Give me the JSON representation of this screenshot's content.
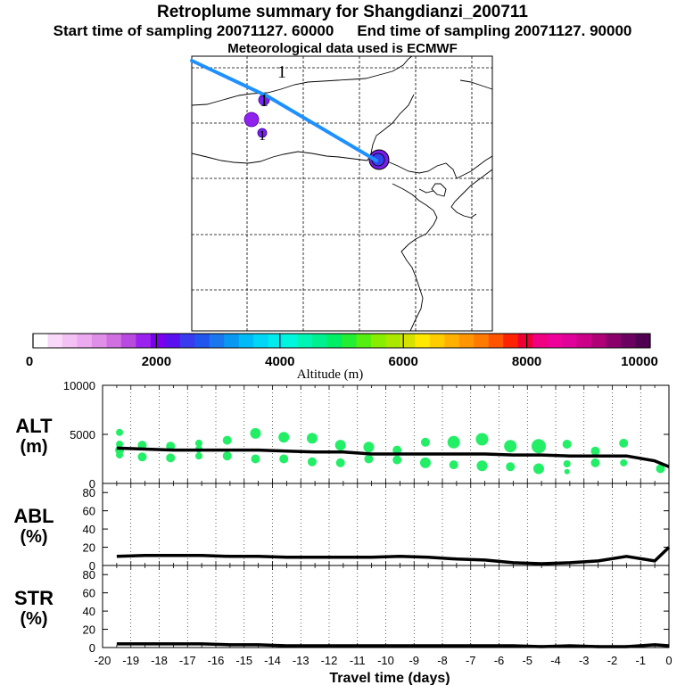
{
  "header": {
    "title": "Retroplume summary for Shangdianzi_200711",
    "start_label": "Start time of sampling 20071127. 60000",
    "end_label": "End time of sampling 20071127. 90000",
    "met_label": "Meteorological data used is ECMWF"
  },
  "map": {
    "trajectory_color": "#1e90ff",
    "land_outline_color": "#000000",
    "cluster_labels": [
      "1",
      "1",
      "1"
    ]
  },
  "colorbar": {
    "colors": [
      "#ffffff",
      "#f9d9f9",
      "#f3c1f4",
      "#ecaaf0",
      "#e08fe8",
      "#d070e0",
      "#b84ae0",
      "#9b22ee",
      "#7b00ee",
      "#5a10ee",
      "#3a3aee",
      "#2255ee",
      "#1a77f0",
      "#0a99f2",
      "#00bbf5",
      "#00d6f5",
      "#00ebee",
      "#00f7dd",
      "#00f5b5",
      "#00f08f",
      "#00ee66",
      "#22ee33",
      "#55ee11",
      "#88ee00",
      "#aae800",
      "#d5e200",
      "#ffe800",
      "#ffcc00",
      "#ffb000",
      "#ff9500",
      "#ff7a00",
      "#ff5500",
      "#ff2200",
      "#ee0033",
      "#f00080",
      "#ee0099",
      "#e0009a",
      "#cc0088",
      "#b00077",
      "#8a006a",
      "#6b0060",
      "#500050"
    ],
    "tick_labels": [
      "0",
      "2000",
      "4000",
      "6000",
      "8000",
      "10000"
    ],
    "label": "Altitude (m)"
  },
  "chart_data": [
    {
      "type": "scatter",
      "title": "ALT",
      "ylabel": "ALT (m)",
      "ylim": [
        0,
        10000
      ],
      "yticks": [
        "0",
        "5000",
        "10000"
      ],
      "xlim": [
        -20,
        0
      ],
      "line": {
        "name": "median altitude",
        "x": [
          -19.5,
          -18.5,
          -17.5,
          -16.5,
          -15.5,
          -14.5,
          -13.5,
          -12.5,
          -11.5,
          -10.5,
          -9.5,
          -8.5,
          -7.5,
          -6.5,
          -5.5,
          -4.5,
          -3.5,
          -2.5,
          -1.5,
          -0.5,
          0
        ],
        "y": [
          3600,
          3500,
          3400,
          3400,
          3400,
          3400,
          3300,
          3200,
          3200,
          3000,
          3000,
          3000,
          3000,
          3000,
          2900,
          2900,
          2800,
          2800,
          2800,
          2300,
          1700
        ]
      },
      "points": {
        "color": "#22ee66",
        "x": [
          -19.4,
          -19.4,
          -19.4,
          -19.4,
          -18.6,
          -18.6,
          -17.6,
          -17.6,
          -16.6,
          -16.6,
          -16.6,
          -15.6,
          -15.6,
          -14.6,
          -14.6,
          -13.6,
          -13.6,
          -12.6,
          -12.6,
          -11.6,
          -11.6,
          -10.6,
          -10.6,
          -9.6,
          -9.6,
          -8.6,
          -8.6,
          -7.6,
          -7.6,
          -6.6,
          -6.6,
          -5.6,
          -5.6,
          -4.6,
          -4.6,
          -3.6,
          -3.6,
          -3.6,
          -2.6,
          -2.6,
          -1.6,
          -1.6,
          -0.3
        ],
        "y": [
          5200,
          4000,
          3400,
          2900,
          3900,
          2700,
          3800,
          2600,
          4100,
          3500,
          2800,
          4400,
          2800,
          5100,
          2500,
          4700,
          2500,
          4600,
          2200,
          3900,
          2100,
          3700,
          2500,
          3400,
          2400,
          4200,
          2100,
          4200,
          1900,
          4500,
          1800,
          3800,
          1700,
          3800,
          1500,
          4000,
          2000,
          1200,
          3300,
          2100,
          4100,
          2100,
          1500
        ],
        "sizes": [
          4,
          4,
          5,
          4,
          5,
          5,
          5,
          5,
          4,
          4,
          4,
          5,
          5,
          6,
          5,
          6,
          5,
          6,
          5,
          6,
          5,
          6,
          5,
          5,
          5,
          5,
          6,
          7,
          5,
          7,
          6,
          7,
          5,
          8,
          6,
          5,
          4,
          3,
          5,
          5,
          5,
          4,
          5
        ]
      }
    },
    {
      "type": "line",
      "title": "ABL",
      "ylabel": "ABL (%)",
      "ylim": [
        0,
        90
      ],
      "yticks": [
        "0",
        "20",
        "40",
        "60",
        "80"
      ],
      "xlim": [
        -20,
        0
      ],
      "x": [
        -19.5,
        -18.5,
        -17.5,
        -16.5,
        -15.5,
        -14.5,
        -13.5,
        -12.5,
        -11.5,
        -10.5,
        -9.5,
        -8.5,
        -7.5,
        -6.5,
        -5.5,
        -4.5,
        -3.5,
        -2.5,
        -1.5,
        -0.5,
        0
      ],
      "y": [
        10,
        11,
        11,
        11,
        10,
        10,
        9,
        9,
        9,
        9,
        10,
        9,
        7,
        6,
        3,
        2,
        3,
        5,
        10,
        5,
        20
      ]
    },
    {
      "type": "line",
      "title": "STR",
      "ylabel": "STR (%)",
      "ylim": [
        0,
        90
      ],
      "yticks": [
        "0",
        "20",
        "40",
        "60",
        "80"
      ],
      "xlim": [
        -20,
        0
      ],
      "x": [
        -19.5,
        -18.5,
        -17.5,
        -16.5,
        -15.5,
        -14.5,
        -13.5,
        -12.5,
        -11.5,
        -10.5,
        -9.5,
        -8.5,
        -7.5,
        -6.5,
        -5.5,
        -4.5,
        -3.5,
        -2.5,
        -1.5,
        -0.5,
        0
      ],
      "y": [
        4,
        4,
        4,
        4,
        3,
        3,
        2,
        2,
        2,
        2,
        2,
        2,
        2,
        2,
        2,
        1,
        2,
        1,
        1,
        3,
        2
      ]
    }
  ],
  "axes": {
    "x_tick_labels": [
      "-20",
      "-19",
      "-18",
      "-17",
      "-16",
      "-15",
      "-14",
      "-13",
      "-12",
      "-11",
      "-10",
      "-9",
      "-8",
      "-7",
      "-6",
      "-5",
      "-4",
      "-3",
      "-2",
      "-1",
      "0"
    ],
    "x_label": "Travel time (days)",
    "panel_labels": [
      {
        "name": "ALT",
        "unit": "(m)"
      },
      {
        "name": "ABL",
        "unit": "(%)"
      },
      {
        "name": "STR",
        "unit": "(%)"
      }
    ]
  }
}
